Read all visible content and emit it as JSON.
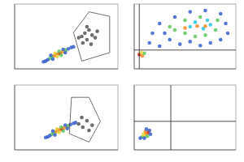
{
  "chart_data": [
    {
      "type": "scatter",
      "xlim": [
        0,
        100
      ],
      "ylim": [
        0,
        100
      ],
      "tick_labels": false,
      "x": [
        40,
        42,
        44,
        38,
        46,
        36,
        48,
        34,
        50,
        41,
        43,
        39,
        45,
        30,
        32,
        52,
        55,
        37,
        47,
        35,
        49,
        28,
        57,
        65,
        68,
        70,
        72,
        75,
        66,
        78,
        70,
        74,
        80,
        62
      ],
      "values": [
        22,
        23,
        24,
        20,
        26,
        18,
        27,
        16,
        29,
        19,
        27,
        24,
        21,
        12,
        14,
        31,
        33,
        15,
        30,
        21,
        25,
        11,
        34,
        50,
        55,
        45,
        60,
        52,
        40,
        48,
        65,
        38,
        58,
        48
      ],
      "colors": [
        "#d62a1e",
        "#f08a24",
        "#d62a1e",
        "#f08a24",
        "#f08a24",
        "#5fc55a",
        "#e8d43a",
        "#5fc55a",
        "#5fc55a",
        "#e8d43a",
        "#5fc55a",
        "#e8d43a",
        "#5fc55a",
        "#3a5fcd",
        "#3a5fcd",
        "#3a5fcd",
        "#3a5fcd",
        "#3a5fcd",
        "#3a5fcd",
        "#3a5fcd",
        "#3a5fcd",
        "#3a5fcd",
        "#3a5fcd",
        "#555555",
        "#555555",
        "#555555",
        "#555555",
        "#555555",
        "#555555",
        "#555555",
        "#555555",
        "#555555",
        "#555555",
        "#555555"
      ],
      "gate": {
        "x": [
          57,
          72,
          92,
          92,
          65
        ],
        "y": [
          56,
          88,
          81,
          25,
          12
        ]
      }
    },
    {
      "type": "scatter",
      "xlim": [
        0,
        100
      ],
      "ylim": [
        0,
        100
      ],
      "tick_labels": false,
      "x": [
        15,
        25,
        35,
        45,
        55,
        65,
        75,
        85,
        92,
        90,
        85,
        70,
        55,
        40,
        25,
        18,
        30,
        40,
        50,
        60,
        70,
        80,
        35,
        82,
        65,
        50,
        55,
        68,
        75,
        60,
        72,
        62,
        70,
        50,
        5,
        8,
        10,
        7
      ],
      "values": [
        40,
        35,
        45,
        38,
        42,
        36,
        40,
        45,
        55,
        70,
        85,
        90,
        88,
        80,
        70,
        55,
        55,
        60,
        55,
        50,
        52,
        60,
        65,
        75,
        80,
        75,
        65,
        62,
        68,
        72,
        75,
        66,
        66,
        63,
        22,
        20,
        24,
        25
      ],
      "colors": [
        "#3a5fcd",
        "#3a5fcd",
        "#3a5fcd",
        "#3a5fcd",
        "#3a5fcd",
        "#3a5fcd",
        "#3a5fcd",
        "#3a5fcd",
        "#3a5fcd",
        "#3a5fcd",
        "#3a5fcd",
        "#3a5fcd",
        "#3a5fcd",
        "#3a5fcd",
        "#3a5fcd",
        "#3a5fcd",
        "#3a5fcd",
        "#5fc55a",
        "#5fc55a",
        "#5fc55a",
        "#5fc55a",
        "#5fc55a",
        "#5fc55a",
        "#5fc55a",
        "#5fc55a",
        "#5fc55a",
        "#29c5e0",
        "#29c5e0",
        "#29c5e0",
        "#29c5e0",
        "#29c5e0",
        "#f08a24",
        "#f08a24",
        "#f08a24",
        "#d62a1e",
        "#f08a24",
        "#5fc55a",
        "#e8d43a"
      ],
      "quadrant": {
        "x": 5,
        "y": 29
      }
    },
    {
      "type": "scatter",
      "xlim": [
        0,
        100
      ],
      "ylim": [
        0,
        100
      ],
      "tick_labels": false,
      "x": [
        42,
        44,
        46,
        40,
        48,
        38,
        50,
        36,
        52,
        43,
        45,
        41,
        47,
        32,
        34,
        54,
        57,
        39,
        49,
        37,
        51,
        30,
        59,
        62,
        66,
        70,
        72,
        65,
        75
      ],
      "values": [
        30,
        31,
        32,
        28,
        34,
        26,
        35,
        24,
        37,
        27,
        35,
        32,
        29,
        20,
        22,
        39,
        41,
        23,
        38,
        29,
        33,
        19,
        42,
        40,
        35,
        45,
        30,
        50,
        38
      ],
      "colors": [
        "#d62a1e",
        "#f08a24",
        "#d62a1e",
        "#f08a24",
        "#f08a24",
        "#5fc55a",
        "#e8d43a",
        "#5fc55a",
        "#5fc55a",
        "#e8d43a",
        "#5fc55a",
        "#e8d43a",
        "#5fc55a",
        "#3a5fcd",
        "#3a5fcd",
        "#3a5fcd",
        "#3a5fcd",
        "#3a5fcd",
        "#3a5fcd",
        "#3a5fcd",
        "#3a5fcd",
        "#3a5fcd",
        "#3a5fcd",
        "#555555",
        "#555555",
        "#555555",
        "#555555",
        "#555555",
        "#555555"
      ],
      "gate": {
        "x": [
          55,
          72,
          83,
          72,
          53
        ],
        "y": [
          81,
          81,
          44,
          12,
          25
        ]
      }
    },
    {
      "type": "scatter",
      "xlim": [
        0,
        100
      ],
      "ylim": [
        0,
        100
      ],
      "tick_labels": false,
      "x": [
        8,
        10,
        12,
        14,
        11,
        9,
        13,
        15,
        6,
        16,
        12,
        10
      ],
      "values": [
        20,
        22,
        25,
        27,
        28,
        24,
        21,
        30,
        18,
        24,
        32,
        18
      ],
      "colors": [
        "#5fc55a",
        "#e8d43a",
        "#f08a24",
        "#d62a1e",
        "#f08a24",
        "#e8d43a",
        "#5fc55a",
        "#3a5fcd",
        "#3a5fcd",
        "#3a5fcd",
        "#3a5fcd",
        "#3a5fcd"
      ],
      "quadrant": {
        "x": 36,
        "y": 44
      }
    }
  ]
}
